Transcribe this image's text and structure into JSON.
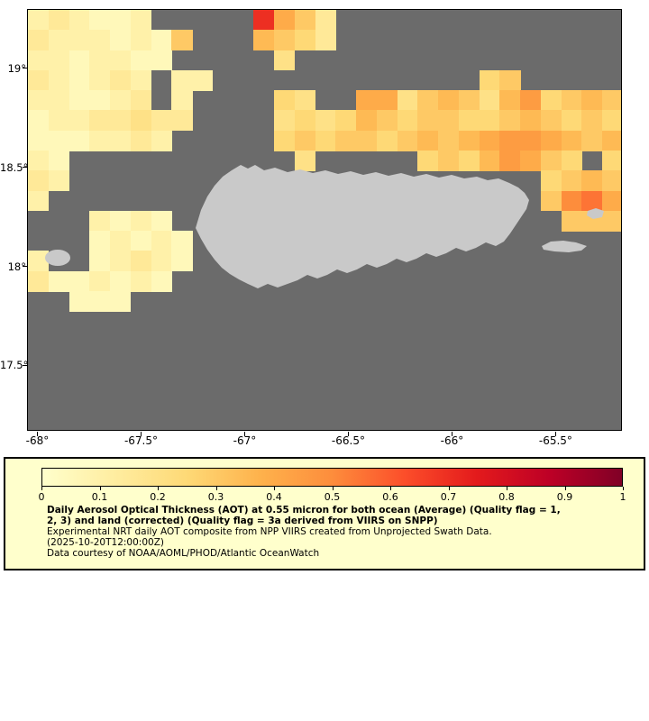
{
  "legend": {
    "title_line1": "Daily Aerosol Optical Thickness (AOT) at 0.55 micron for both ocean (Average) (Quality flag = 1,",
    "title_line2": "2, 3) and land (corrected) (Quality flag = 3a derived from VIIRS on SNPP)",
    "subtitle": "Experimental NRT daily AOT composite from NPP VIIRS created from Unprojected Swath Data.",
    "timestamp": "(2025-10-20T12:00:00Z)",
    "credit": "Data courtesy of NOAA/AOML/PHOD/Atlantic OceanWatch"
  },
  "chart_data": {
    "type": "heatmap",
    "title": "Daily Aerosol Optical Thickness (AOT) at 0.55 micron for both ocean (Average) (Quality flag = 1, 2, 3) and land (corrected) (Quality flag = 3a derived from VIIRS on SNPP)",
    "subtitle": "Experimental NRT daily AOT composite from NPP VIIRS created from Unprojected Swath Data.",
    "timestamp": "(2025-10-20T12:00:00Z)",
    "credit": "Data courtesy of NOAA/AOML/PHOD/Atlantic OceanWatch",
    "x_ticks": [
      {
        "value": -68,
        "label": "-68°"
      },
      {
        "value": -67.5,
        "label": "-67.5°"
      },
      {
        "value": -67,
        "label": "-67°"
      },
      {
        "value": -66.5,
        "label": "-66.5°"
      },
      {
        "value": -66,
        "label": "-66°"
      },
      {
        "value": -65.5,
        "label": "-65.5°"
      }
    ],
    "y_ticks": [
      {
        "value": 19,
        "label": "19°"
      },
      {
        "value": 18.5,
        "label": "18.5°"
      },
      {
        "value": 18,
        "label": "18°"
      },
      {
        "value": 17.5,
        "label": "17.5°"
      }
    ],
    "extent": {
      "lon_min": -68.05,
      "lon_max": -65.18,
      "lat_min": 17.17,
      "lat_max": 19.3
    },
    "colorbar": {
      "min": 0,
      "max": 1,
      "tick_labels": [
        "0",
        "0.1",
        "0.2",
        "0.3",
        "0.4",
        "0.5",
        "0.6",
        "0.7",
        "0.8",
        "0.9",
        "1"
      ]
    },
    "colormap": {
      "name": "YlOrRd",
      "stops": [
        "#FFFFCC",
        "#FFEDA0",
        "#FED976",
        "#FEB24C",
        "#FD8D3C",
        "#FC4E2A",
        "#E31A1C",
        "#BD0026",
        "#800026"
      ]
    },
    "no_data_color": "#6B6B6B",
    "land_color": "#C9C9C9",
    "legend_bg_color": "#FFFFCC",
    "grid": {
      "rows": 21,
      "cols": 29,
      "lon_cell_deg": 0.1,
      "lat_cell_deg": 0.1,
      "codes": {
        "a": 0.05,
        "b": 0.1,
        "c": 0.15,
        "d": 0.2,
        "e": 0.25,
        "f": 0.3,
        "g": 0.35,
        "h": 0.4,
        "i": 0.45,
        "j": 0.5,
        "k": 0.55,
        "R": 0.7
      },
      "cells": [
        "bcbaab.....Rhfc",
        "cbbbabaf...gfec",
        "bbabbaa.....d",
        "cbabcb.bb.............ef",
        "bbaabc.b....ed..hhdfgfdgiefgf",
        "abbccdcc....dedegfeffeefgfefe",
        "aaabbcb.....efeffefgfghiihgfg",
        "ba...........d.....efegihfe.e",
        "cb.......................efgf",
        "b........................fjkh",
        "...baba...................fff",
        "...ababa",
        "b..abcba",
        "caababa",
        "..aaa",
        "",
        "",
        "",
        "",
        "",
        ""
      ]
    }
  }
}
